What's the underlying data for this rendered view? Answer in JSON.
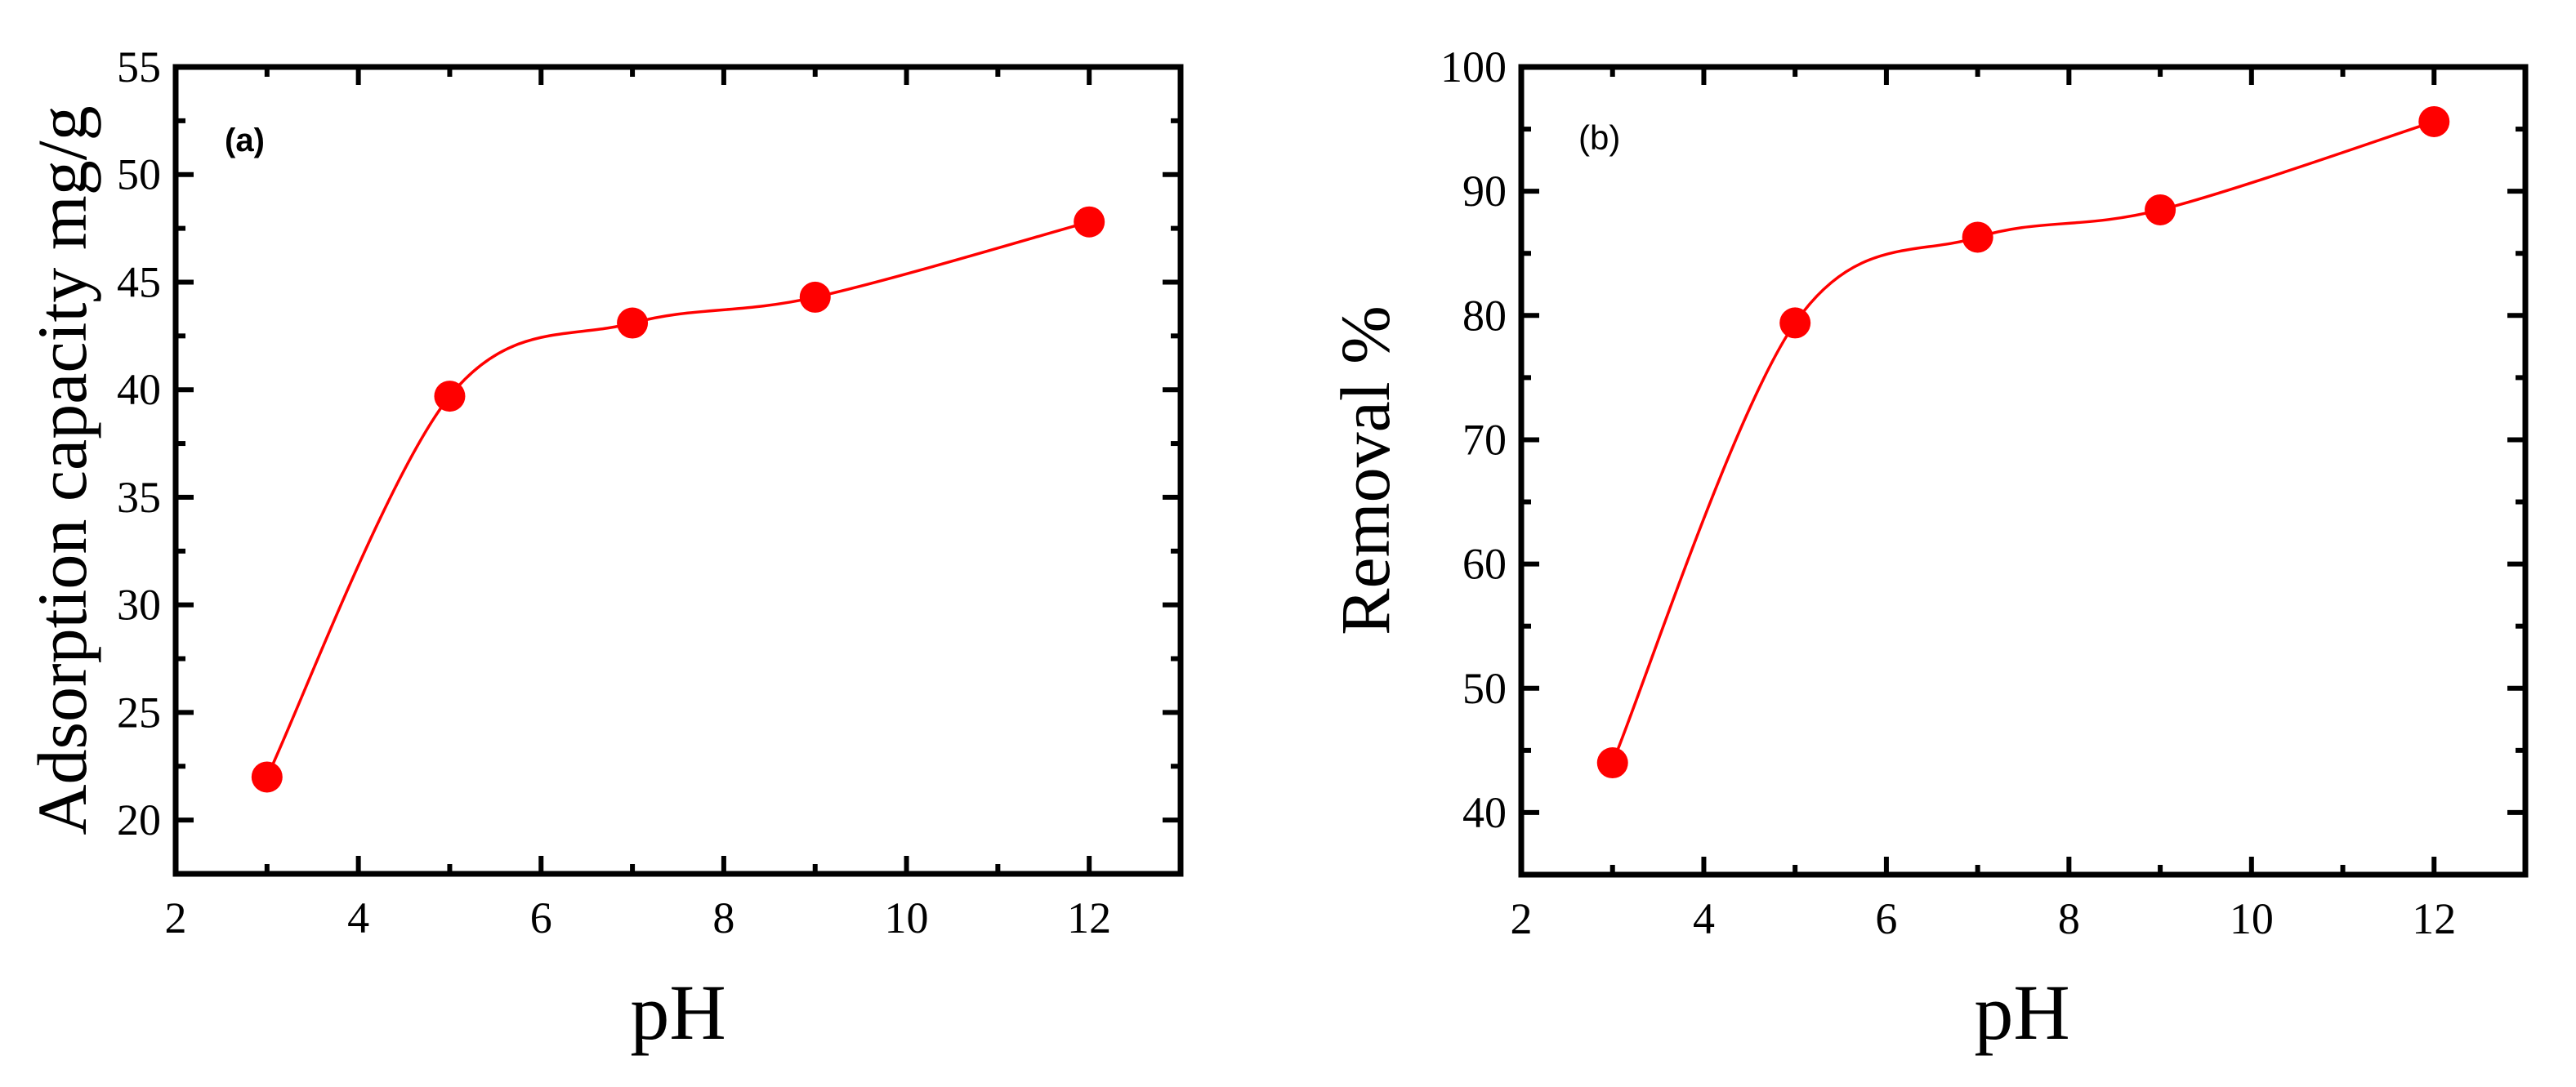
{
  "figure": {
    "panels": [
      {
        "id": "a",
        "panel_label": "(a)",
        "panel_label_style": "bold",
        "xlabel": "pH",
        "ylabel": "Adsorption capacity mg/g"
      },
      {
        "id": "b",
        "panel_label": "(b)",
        "panel_label_style": "regular",
        "xlabel": "pH",
        "ylabel": "Removal %"
      }
    ],
    "colors": {
      "series": "#ff0000",
      "axis": "#000000",
      "background": "#ffffff"
    }
  },
  "chart_data": [
    {
      "type": "line",
      "title": "(a)",
      "xlabel": "pH",
      "ylabel": "Adsorption capacity mg/g",
      "x": [
        3,
        5,
        7,
        9,
        12
      ],
      "series": [
        {
          "name": "Adsorption capacity",
          "values": [
            22.0,
            39.7,
            43.1,
            44.3,
            47.8
          ],
          "color": "#ff0000",
          "marker": "circle",
          "line": "smooth spline"
        }
      ],
      "xlim": [
        2,
        13
      ],
      "ylim": [
        17.5,
        55
      ],
      "xticks": [
        2,
        4,
        6,
        8,
        10,
        12
      ],
      "xtick_labels": [
        "2",
        "4",
        "6",
        "8",
        "10",
        "12"
      ],
      "x_minor_step": 1,
      "yticks": [
        20,
        25,
        30,
        35,
        40,
        45,
        50,
        55
      ],
      "ytick_labels": [
        "20",
        "25",
        "30",
        "35",
        "40",
        "45",
        "50",
        "55"
      ],
      "y_minor_step": 2.5,
      "grid": false,
      "legend": null
    },
    {
      "type": "line",
      "title": "(b)",
      "xlabel": "pH",
      "ylabel": "Removal %",
      "x": [
        3,
        5,
        7,
        9,
        12
      ],
      "series": [
        {
          "name": "Removal",
          "values": [
            44.0,
            79.4,
            86.3,
            88.5,
            95.6
          ],
          "color": "#ff0000",
          "marker": "circle",
          "line": "smooth spline"
        }
      ],
      "xlim": [
        2,
        13
      ],
      "ylim": [
        35,
        100
      ],
      "xticks": [
        2,
        4,
        6,
        8,
        10,
        12
      ],
      "xtick_labels": [
        "2",
        "4",
        "6",
        "8",
        "10",
        "12"
      ],
      "x_minor_step": 1,
      "yticks": [
        40,
        50,
        60,
        70,
        80,
        90,
        100
      ],
      "ytick_labels": [
        "40",
        "50",
        "60",
        "70",
        "80",
        "90",
        "100"
      ],
      "y_minor_step": 5,
      "grid": false,
      "legend": null
    }
  ]
}
